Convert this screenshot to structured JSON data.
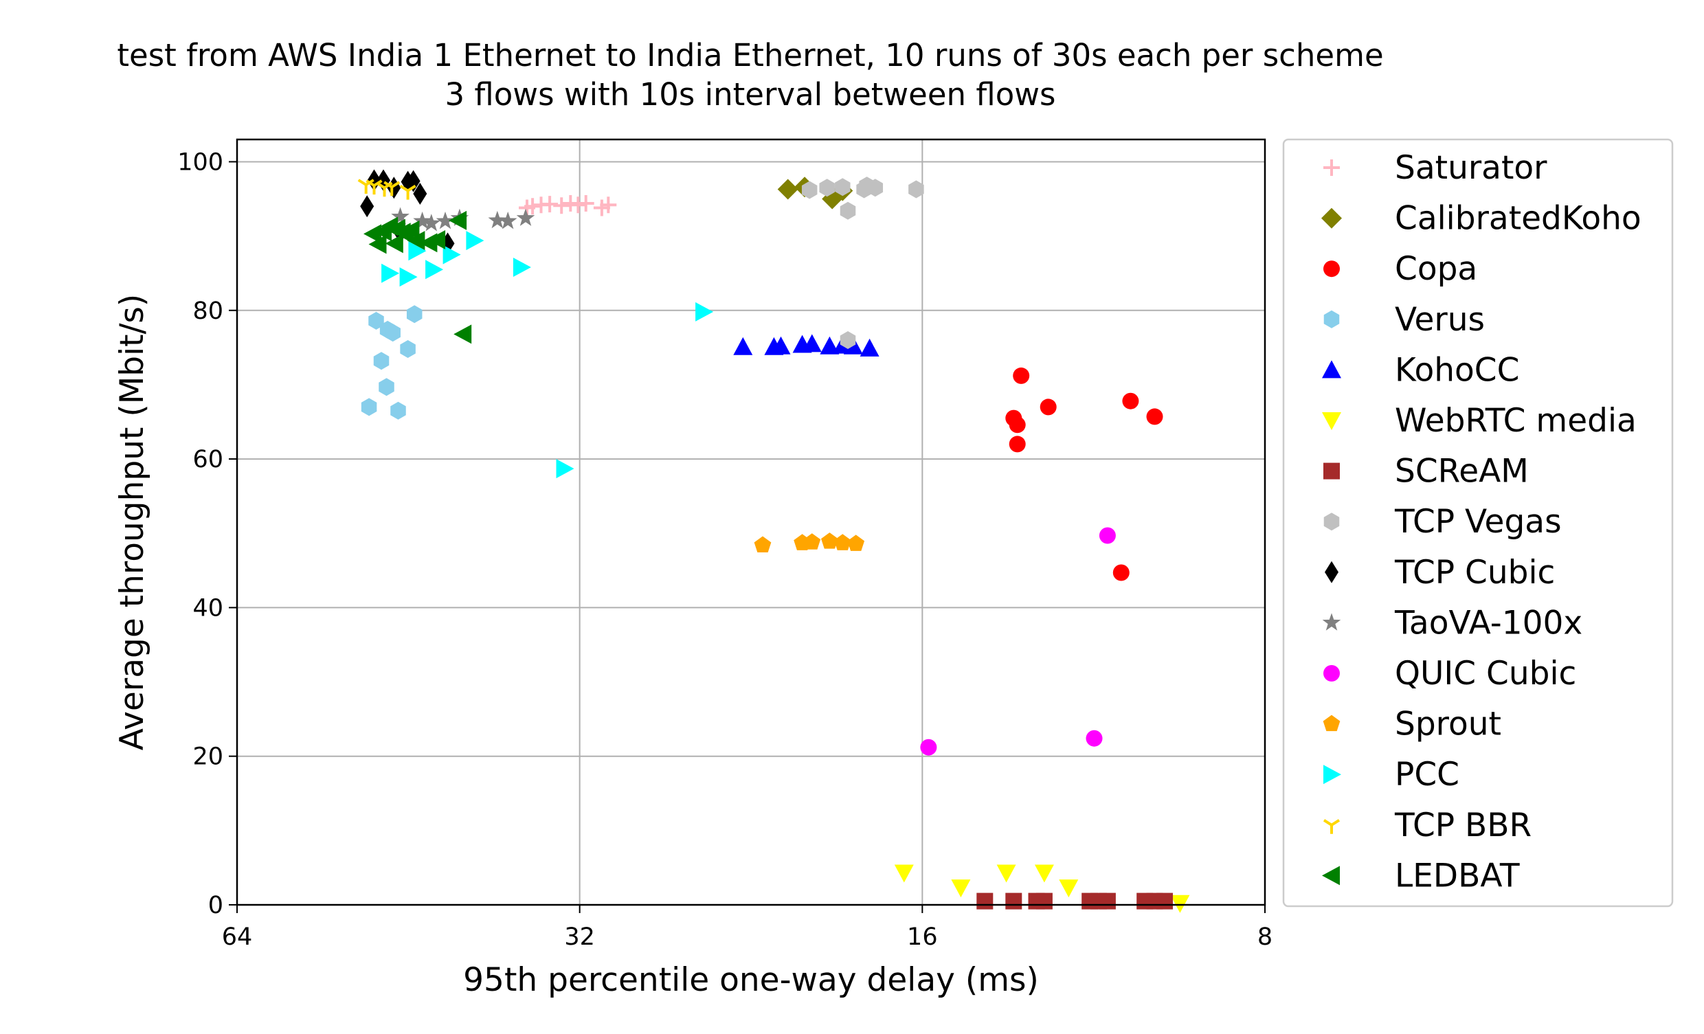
{
  "chart_data": {
    "type": "scatter",
    "title": "test from AWS India 1 Ethernet to India Ethernet, 10 runs of 30s each per scheme",
    "subtitle": "3 flows with 10s interval between flows",
    "xlabel": "95th percentile one-way delay (ms)",
    "ylabel": "Average throughput (Mbit/s)",
    "x_scale": "log2",
    "x_inverted": true,
    "xlim": [
      64,
      8
    ],
    "ylim": [
      0,
      103
    ],
    "x_ticks": [
      64,
      32,
      16,
      8
    ],
    "y_ticks": [
      0,
      20,
      40,
      60,
      80,
      100
    ],
    "grid": true,
    "legend_position": "outside-right",
    "series": [
      {
        "name": "Saturator",
        "marker": "plus",
        "color": "#ffb6c1",
        "points": [
          [
            35.2,
            94
          ],
          [
            34.6,
            94.2
          ],
          [
            34.0,
            94.3
          ],
          [
            32.6,
            94.4
          ],
          [
            32.1,
            94.2
          ],
          [
            31.6,
            94.4
          ],
          [
            30.6,
            93.8
          ],
          [
            30.2,
            94.2
          ],
          [
            35.6,
            93.8
          ],
          [
            33.2,
            94.1
          ]
        ]
      },
      {
        "name": "CalibratedKoho",
        "marker": "diamond",
        "color": "#808000",
        "points": [
          [
            21.0,
            96.3
          ],
          [
            20.3,
            96.6
          ],
          [
            19.2,
            95.0
          ],
          [
            18.8,
            96.1
          ]
        ]
      },
      {
        "name": "Copa",
        "marker": "circle",
        "color": "#ff0000",
        "points": [
          [
            13.1,
            71.2
          ],
          [
            13.3,
            65.5
          ],
          [
            13.2,
            64.6
          ],
          [
            13.2,
            62.0
          ],
          [
            12.4,
            67.0
          ],
          [
            10.5,
            67.8
          ],
          [
            10.0,
            65.7
          ],
          [
            10.7,
            44.7
          ]
        ]
      },
      {
        "name": "Verus",
        "marker": "hexagon",
        "color": "#87ceeb",
        "points": [
          [
            48.3,
            78.6
          ],
          [
            47.2,
            77.4
          ],
          [
            46.7,
            77.0
          ],
          [
            44.7,
            79.5
          ],
          [
            45.3,
            74.8
          ],
          [
            47.8,
            73.2
          ],
          [
            47.3,
            69.7
          ],
          [
            49.0,
            67.0
          ],
          [
            46.2,
            66.5
          ]
        ]
      },
      {
        "name": "KohoCC",
        "marker": "triangle-up",
        "color": "#0000ff",
        "points": [
          [
            23.0,
            75.1
          ],
          [
            21.6,
            75.1
          ],
          [
            21.3,
            75.2
          ],
          [
            20.4,
            75.4
          ],
          [
            20.0,
            75.5
          ],
          [
            19.3,
            75.2
          ],
          [
            18.8,
            75.3
          ],
          [
            18.4,
            75.2
          ],
          [
            17.8,
            74.9
          ]
        ]
      },
      {
        "name": "WebRTC media",
        "marker": "triangle-down",
        "color": "#ffff00",
        "points": [
          [
            16.6,
            4.3
          ],
          [
            14.8,
            2.3
          ],
          [
            13.5,
            4.3
          ],
          [
            12.5,
            4.3
          ],
          [
            11.9,
            2.3
          ],
          [
            9.5,
            0.2
          ]
        ]
      },
      {
        "name": "SCReAM",
        "marker": "square",
        "color": "#a52a2a",
        "points": [
          [
            14.1,
            0.5
          ],
          [
            13.3,
            0.5
          ],
          [
            12.7,
            0.5
          ],
          [
            12.5,
            0.5
          ],
          [
            11.4,
            0.5
          ],
          [
            11.2,
            0.5
          ],
          [
            11.0,
            0.5
          ],
          [
            10.2,
            0.5
          ],
          [
            10.0,
            0.5
          ],
          [
            9.8,
            0.5
          ]
        ]
      },
      {
        "name": "TCP Vegas",
        "marker": "hexagon",
        "color": "#c0c0c0",
        "points": [
          [
            20.1,
            96.2
          ],
          [
            19.4,
            96.5
          ],
          [
            18.8,
            96.6
          ],
          [
            18.0,
            96.3
          ],
          [
            17.9,
            96.8
          ],
          [
            17.6,
            96.5
          ],
          [
            16.2,
            96.3
          ],
          [
            18.6,
            93.4
          ],
          [
            18.6,
            76.0
          ]
        ]
      },
      {
        "name": "TCP Cubic",
        "marker": "thin-diamond",
        "color": "#000000",
        "points": [
          [
            49.2,
            94.0
          ],
          [
            48.5,
            97.5
          ],
          [
            47.6,
            97.5
          ],
          [
            46.6,
            96.5
          ],
          [
            46.0,
            90.5
          ],
          [
            45.3,
            97.3
          ],
          [
            44.8,
            97.4
          ],
          [
            44.2,
            95.7
          ],
          [
            41.8,
            89.0
          ]
        ]
      },
      {
        "name": "TaoVA-100x",
        "marker": "star",
        "color": "#808080",
        "points": [
          [
            46.0,
            92.6
          ],
          [
            44.0,
            92.0
          ],
          [
            43.2,
            91.7
          ],
          [
            42.0,
            92.0
          ],
          [
            40.8,
            92.4
          ],
          [
            37.8,
            92.1
          ],
          [
            37.0,
            92.0
          ],
          [
            35.7,
            92.4
          ]
        ]
      },
      {
        "name": "QUIC Cubic",
        "marker": "circle",
        "color": "#ff00ff",
        "points": [
          [
            11.0,
            49.7
          ],
          [
            11.3,
            22.4
          ],
          [
            15.8,
            21.2
          ]
        ]
      },
      {
        "name": "Sprout",
        "marker": "pentagon",
        "color": "#ffa500",
        "points": [
          [
            22.1,
            48.4
          ],
          [
            20.4,
            48.7
          ],
          [
            20.0,
            48.8
          ],
          [
            19.3,
            48.9
          ],
          [
            18.8,
            48.7
          ],
          [
            18.3,
            48.6
          ]
        ]
      },
      {
        "name": "PCC",
        "marker": "triangle-right",
        "color": "#00ffff",
        "points": [
          [
            47.0,
            85.0
          ],
          [
            45.3,
            84.5
          ],
          [
            43.0,
            85.5
          ],
          [
            39.6,
            89.4
          ],
          [
            36.0,
            85.8
          ],
          [
            33.0,
            58.7
          ],
          [
            24.9,
            79.8
          ],
          [
            44.5,
            88.0
          ],
          [
            41.5,
            87.5
          ]
        ]
      },
      {
        "name": "TCP BBR",
        "marker": "tri-down",
        "color": "#ffd700",
        "points": [
          [
            49.3,
            96.9
          ],
          [
            48.5,
            96.8
          ],
          [
            47.5,
            96.5
          ],
          [
            46.8,
            96.6
          ],
          [
            45.3,
            96.1
          ]
        ]
      },
      {
        "name": "LEDBAT",
        "marker": "triangle-left",
        "color": "#008000",
        "points": [
          [
            48.6,
            90.3
          ],
          [
            47.6,
            90.6
          ],
          [
            47.0,
            91.3
          ],
          [
            46.3,
            91.0
          ],
          [
            45.8,
            90.5
          ],
          [
            45.0,
            90.8
          ],
          [
            44.5,
            89.4
          ],
          [
            43.4,
            89.1
          ],
          [
            42.7,
            89.5
          ],
          [
            40.9,
            92.1
          ],
          [
            48.1,
            88.9
          ],
          [
            46.5,
            89.0
          ],
          [
            40.5,
            76.8
          ],
          [
            45.5,
            90.4
          ]
        ]
      }
    ]
  }
}
